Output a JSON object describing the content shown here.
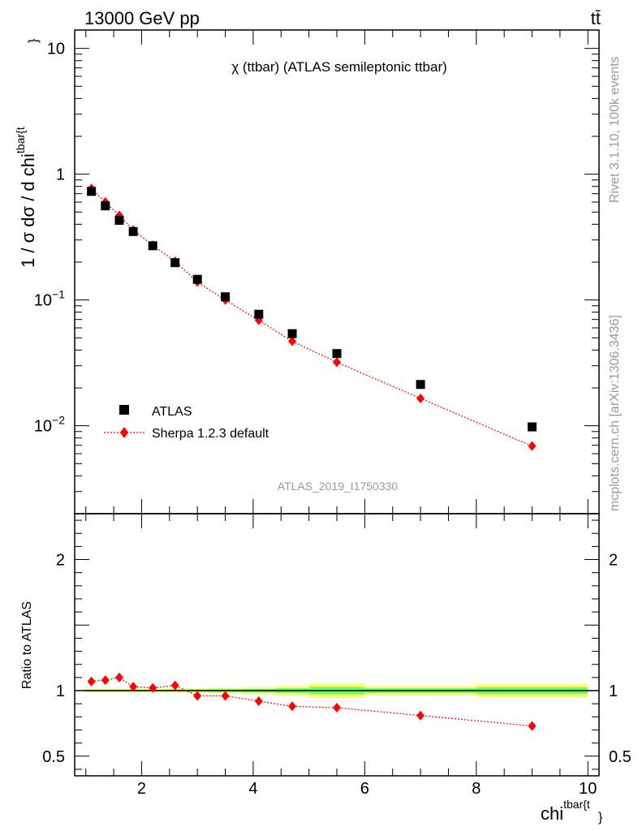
{
  "header": {
    "left": "13000 GeV pp",
    "right": "tt̄"
  },
  "side_texts": {
    "rivet": "Rivet 3.1.10,  100k events",
    "mcplots": "mcplots.cern.ch [arXiv:1306.3436]"
  },
  "chart_data": [
    {
      "type": "scatter",
      "title": "χ (ttbar) (ATLAS semileptonic ttbar)",
      "watermark": "ATLAS_2019_I1750330",
      "ylabel": "1 / σ dσ / d chi",
      "ylabel_sup": "tbar{t",
      "ylabel_brace": "}",
      "yscale": "log",
      "xlim": [
        0.8,
        10.2
      ],
      "ylim": [
        0.002,
        14
      ],
      "ytick_labels": [
        {
          "value": 10,
          "base": "10",
          "exp": ""
        },
        {
          "value": 1,
          "base": "1",
          "exp": ""
        },
        {
          "value": 0.1,
          "base": "10",
          "exp": "−1"
        },
        {
          "value": 0.01,
          "base": "10",
          "exp": "−2"
        }
      ],
      "legend": {
        "position": "lower-left",
        "entries": [
          {
            "label": "ATLAS",
            "marker": "square",
            "color": "#000000"
          },
          {
            "label": "Sherpa 1.2.3 default",
            "marker": "diamond",
            "color": "#ff0000"
          }
        ]
      },
      "series": [
        {
          "name": "ATLAS",
          "color": "#000000",
          "marker": "square",
          "x": [
            1.1,
            1.35,
            1.6,
            1.85,
            2.2,
            2.6,
            3.0,
            3.5,
            4.1,
            4.7,
            5.5,
            7.0,
            9.0
          ],
          "y": [
            0.73,
            0.56,
            0.43,
            0.35,
            0.27,
            0.198,
            0.146,
            0.106,
            0.077,
            0.054,
            0.0375,
            0.0213,
            0.0098
          ]
        },
        {
          "name": "Sherpa 1.2.3 default",
          "color": "#ff0000",
          "marker": "diamond",
          "x": [
            1.1,
            1.35,
            1.6,
            1.85,
            2.2,
            2.6,
            3.0,
            3.5,
            4.1,
            4.7,
            5.5,
            7.0,
            9.0
          ],
          "y": [
            0.77,
            0.6,
            0.47,
            0.36,
            0.272,
            0.203,
            0.139,
            0.1,
            0.069,
            0.047,
            0.032,
            0.0165,
            0.0069
          ]
        }
      ]
    },
    {
      "type": "scatter",
      "ylabel": "Ratio to ATLAS",
      "xlabel": "chi",
      "xlabel_sup": "tbar{t",
      "xlabel_brace": "}",
      "xlim": [
        0.8,
        10.2
      ],
      "ylim": [
        0.35,
        2.35
      ],
      "xtick_labels": [
        "2",
        "4",
        "6",
        "8",
        "10"
      ],
      "ytick_labels": [
        "2",
        "1",
        "0.5"
      ],
      "reference_line": 1,
      "uncertainty_band": {
        "color_outer": "#ffff66",
        "color_inner": "#66ff66",
        "bins": [
          {
            "x0": 0.97,
            "x1": 1.225,
            "outer": 0.012,
            "inner": 0.007
          },
          {
            "x0": 1.225,
            "x1": 1.475,
            "outer": 0.012,
            "inner": 0.007
          },
          {
            "x0": 1.475,
            "x1": 1.725,
            "outer": 0.012,
            "inner": 0.007
          },
          {
            "x0": 1.725,
            "x1": 2.0,
            "outer": 0.012,
            "inner": 0.007
          },
          {
            "x0": 2.0,
            "x1": 2.4,
            "outer": 0.013,
            "inner": 0.007
          },
          {
            "x0": 2.4,
            "x1": 2.8,
            "outer": 0.014,
            "inner": 0.008
          },
          {
            "x0": 2.8,
            "x1": 3.2,
            "outer": 0.016,
            "inner": 0.009
          },
          {
            "x0": 3.2,
            "x1": 3.8,
            "outer": 0.02,
            "inner": 0.011
          },
          {
            "x0": 3.8,
            "x1": 4.4,
            "outer": 0.025,
            "inner": 0.013
          },
          {
            "x0": 4.4,
            "x1": 5.0,
            "outer": 0.035,
            "inner": 0.018
          },
          {
            "x0": 5.0,
            "x1": 6.0,
            "outer": 0.055,
            "inner": 0.028
          },
          {
            "x0": 6.0,
            "x1": 8.0,
            "outer": 0.035,
            "inner": 0.018
          },
          {
            "x0": 8.0,
            "x1": 10.0,
            "outer": 0.05,
            "inner": 0.025
          }
        ]
      },
      "series": [
        {
          "name": "Sherpa 1.2.3 default",
          "color": "#ff0000",
          "x": [
            1.1,
            1.35,
            1.6,
            1.85,
            2.2,
            2.6,
            3.0,
            3.5,
            4.1,
            4.7,
            5.5,
            7.0,
            9.0
          ],
          "y": [
            1.07,
            1.08,
            1.1,
            1.03,
            1.02,
            1.04,
            0.96,
            0.96,
            0.92,
            0.88,
            0.87,
            0.81,
            0.73
          ],
          "err": [
            0.02,
            0.02,
            0.02,
            0.02,
            0.02,
            0.02,
            0.02,
            0.02,
            0.025,
            0.025,
            0.025,
            0.025,
            0.03
          ]
        }
      ]
    }
  ]
}
